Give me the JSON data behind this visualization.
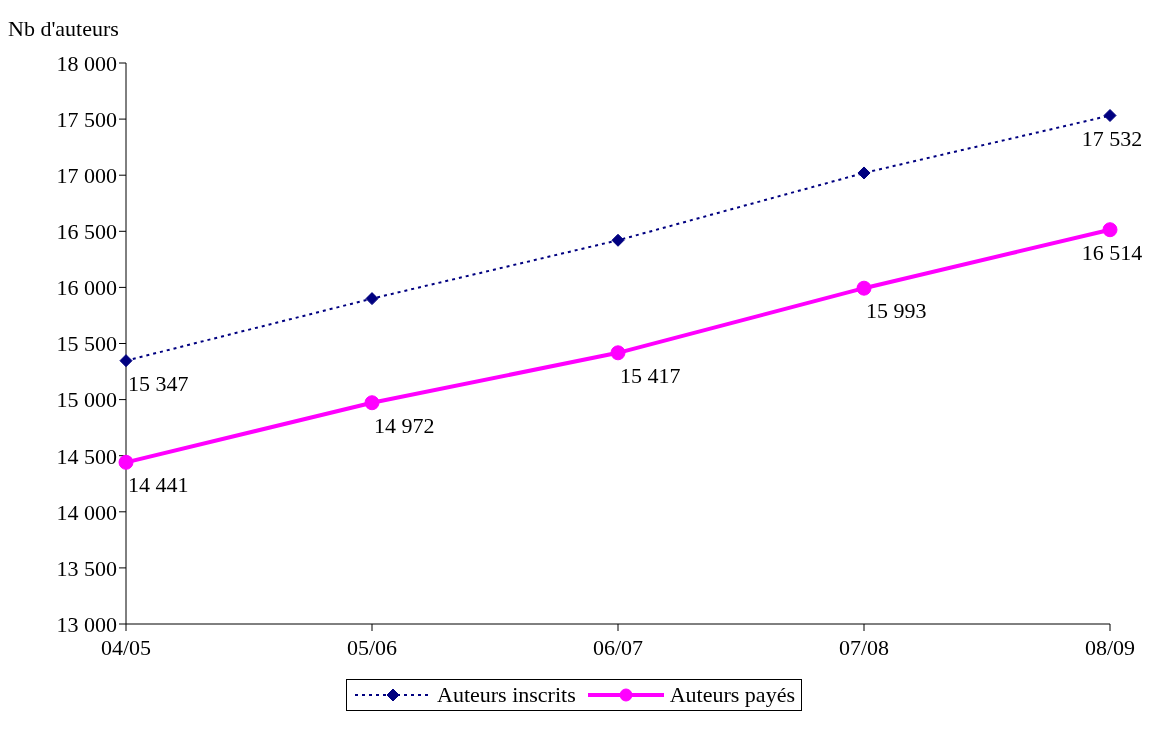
{
  "chart_data": {
    "type": "line",
    "ylabel": "Nb d'auteurs",
    "categories": [
      "04/05",
      "05/06",
      "06/07",
      "07/08",
      "08/09"
    ],
    "series": [
      {
        "name": "Auteurs inscrits",
        "color": "#000080",
        "marker": "diamond",
        "line_style": "dotted",
        "values": [
          15347,
          15900,
          16420,
          17020,
          17532
        ],
        "value_labels": [
          "15 347",
          null,
          null,
          null,
          "17 532"
        ]
      },
      {
        "name": "Auteurs payés",
        "color": "#ff00ff",
        "marker": "circle",
        "line_style": "solid",
        "values": [
          14441,
          14972,
          15417,
          15993,
          16514
        ],
        "value_labels": [
          "14 441",
          "14 972",
          "15 417",
          "15 993",
          "16 514"
        ]
      }
    ],
    "ylim": [
      13000,
      18000
    ],
    "yticks": [
      {
        "value": 13000,
        "label": "13 000"
      },
      {
        "value": 13500,
        "label": "13 500"
      },
      {
        "value": 14000,
        "label": "14 000"
      },
      {
        "value": 14500,
        "label": "14 500"
      },
      {
        "value": 15000,
        "label": "15 000"
      },
      {
        "value": 15500,
        "label": "15 500"
      },
      {
        "value": 16000,
        "label": "16 000"
      },
      {
        "value": 16500,
        "label": "16 500"
      },
      {
        "value": 17000,
        "label": "17 000"
      },
      {
        "value": 17500,
        "label": "17 500"
      },
      {
        "value": 18000,
        "label": "18 000"
      }
    ],
    "grid": false,
    "legend": "bottom"
  }
}
